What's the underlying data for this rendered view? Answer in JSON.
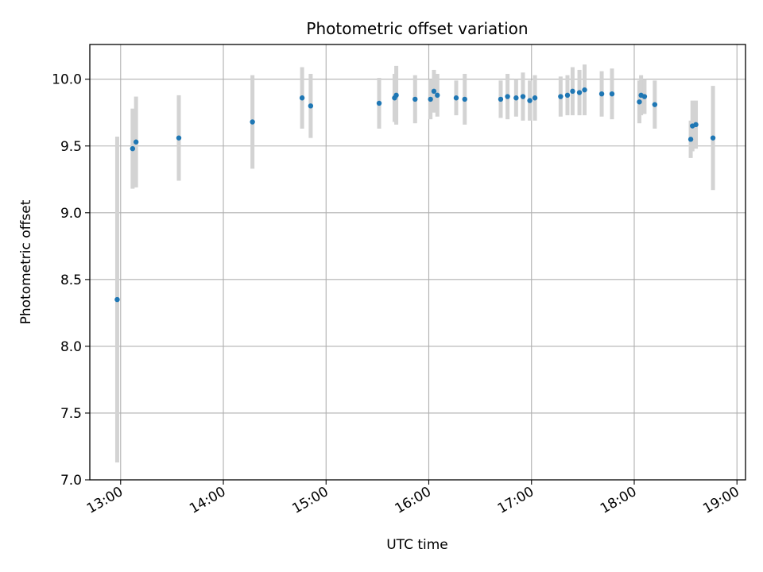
{
  "chart_data": {
    "type": "scatter",
    "title": "Photometric offset variation",
    "xlabel": "UTC time",
    "ylabel": "Photometric offset",
    "x_ticks": [
      "13:00",
      "14:00",
      "15:00",
      "16:00",
      "17:00",
      "18:00",
      "19:00"
    ],
    "xlim": [
      "12:42",
      "19:05"
    ],
    "ylim": [
      7.0,
      10.26
    ],
    "y_ticks": [
      7.0,
      7.5,
      8.0,
      8.5,
      9.0,
      9.5,
      10.0
    ],
    "grid": true,
    "colors": {
      "point": "#1f77b4",
      "errorbar": "#d3d3d3",
      "grid": "#b0b0b0"
    },
    "points": [
      {
        "time": "12:58",
        "y": 8.35,
        "err": 1.22
      },
      {
        "time": "13:07",
        "y": 9.48,
        "err": 0.3
      },
      {
        "time": "13:09",
        "y": 9.53,
        "err": 0.34
      },
      {
        "time": "13:34",
        "y": 9.56,
        "err": 0.32
      },
      {
        "time": "14:17",
        "y": 9.68,
        "err": 0.35
      },
      {
        "time": "14:46",
        "y": 9.86,
        "err": 0.23
      },
      {
        "time": "14:51",
        "y": 9.8,
        "err": 0.24
      },
      {
        "time": "15:31",
        "y": 9.82,
        "err": 0.19
      },
      {
        "time": "15:40",
        "y": 9.86,
        "err": 0.18
      },
      {
        "time": "15:41",
        "y": 9.88,
        "err": 0.22
      },
      {
        "time": "15:52",
        "y": 9.85,
        "err": 0.18
      },
      {
        "time": "16:01",
        "y": 9.85,
        "err": 0.15
      },
      {
        "time": "16:03",
        "y": 9.91,
        "err": 0.16
      },
      {
        "time": "16:05",
        "y": 9.88,
        "err": 0.16
      },
      {
        "time": "16:16",
        "y": 9.86,
        "err": 0.13
      },
      {
        "time": "16:21",
        "y": 9.85,
        "err": 0.19
      },
      {
        "time": "16:42",
        "y": 9.85,
        "err": 0.14
      },
      {
        "time": "16:46",
        "y": 9.87,
        "err": 0.17
      },
      {
        "time": "16:51",
        "y": 9.86,
        "err": 0.14
      },
      {
        "time": "16:55",
        "y": 9.87,
        "err": 0.18
      },
      {
        "time": "16:59",
        "y": 9.84,
        "err": 0.15
      },
      {
        "time": "17:02",
        "y": 9.86,
        "err": 0.17
      },
      {
        "time": "17:17",
        "y": 9.87,
        "err": 0.15
      },
      {
        "time": "17:21",
        "y": 9.88,
        "err": 0.15
      },
      {
        "time": "17:24",
        "y": 9.91,
        "err": 0.18
      },
      {
        "time": "17:28",
        "y": 9.9,
        "err": 0.17
      },
      {
        "time": "17:31",
        "y": 9.92,
        "err": 0.19
      },
      {
        "time": "17:41",
        "y": 9.89,
        "err": 0.17
      },
      {
        "time": "17:47",
        "y": 9.89,
        "err": 0.19
      },
      {
        "time": "18:03",
        "y": 9.83,
        "err": 0.16
      },
      {
        "time": "18:04",
        "y": 9.88,
        "err": 0.15
      },
      {
        "time": "18:06",
        "y": 9.87,
        "err": 0.13
      },
      {
        "time": "18:12",
        "y": 9.81,
        "err": 0.18
      },
      {
        "time": "18:33",
        "y": 9.55,
        "err": 0.14
      },
      {
        "time": "18:34",
        "y": 9.65,
        "err": 0.19
      },
      {
        "time": "18:36",
        "y": 9.66,
        "err": 0.18
      },
      {
        "time": "18:46",
        "y": 9.56,
        "err": 0.39
      }
    ]
  }
}
